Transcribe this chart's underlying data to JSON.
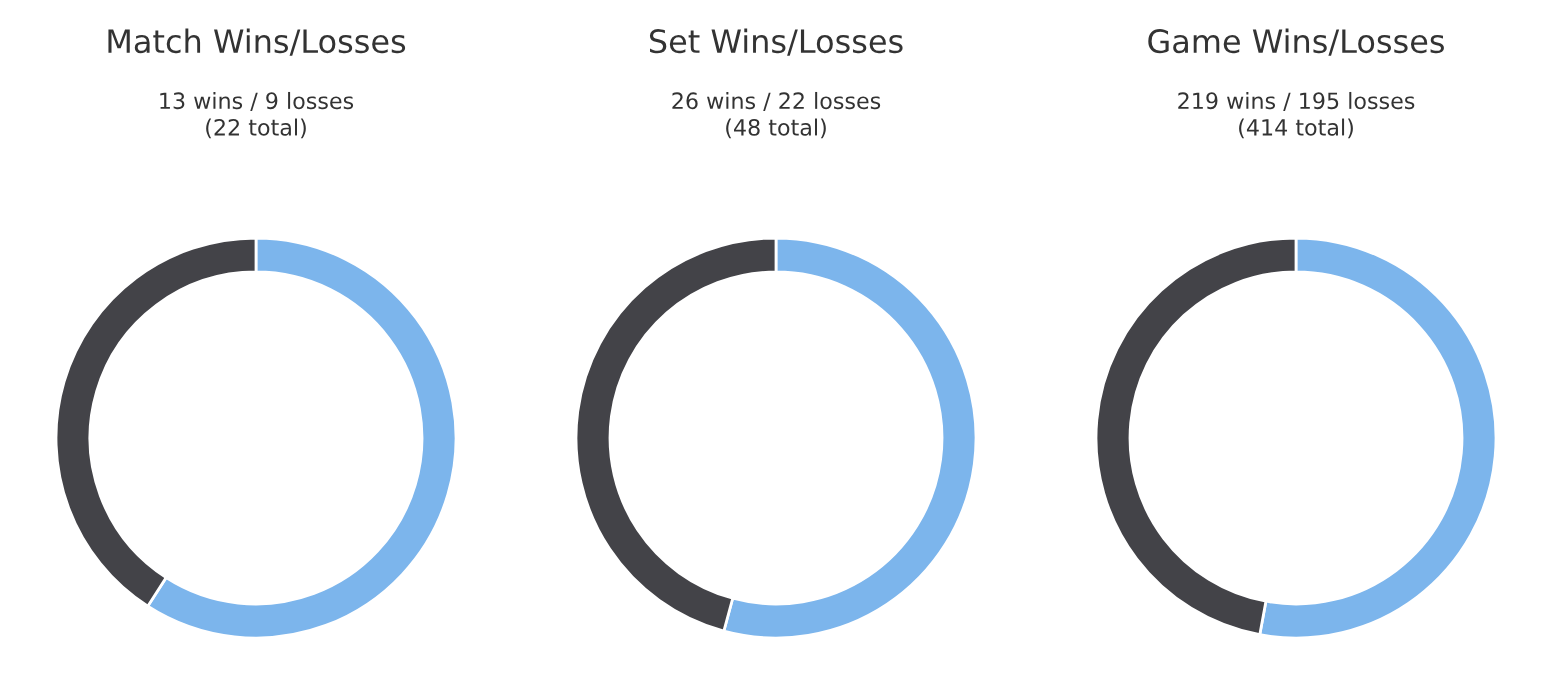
{
  "chart_data": [
    {
      "type": "donut",
      "title": "Match Wins/Losses",
      "subtitle": "13 wins / 9 losses\n(22 total)",
      "categories": [
        null,
        null
      ],
      "values": [
        59.1,
        40.9
      ],
      "colors": [
        "#7cb5ec",
        "#434348"
      ]
    },
    {
      "type": "donut",
      "title": "Set Wins/Losses",
      "subtitle": "26 wins / 22 losses\n(48 total)",
      "categories": [
        null,
        null
      ],
      "values": [
        54.2,
        45.8
      ],
      "colors": [
        "#7cb5ec",
        "#434348"
      ]
    },
    {
      "type": "donut",
      "title": "Game Wins/Losses",
      "subtitle": "219 wins / 195 losses\n(414 total)",
      "categories": [
        null,
        null
      ],
      "values": [
        52.9,
        47.1
      ],
      "colors": [
        "#7cb5ec",
        "#434348"
      ]
    }
  ]
}
